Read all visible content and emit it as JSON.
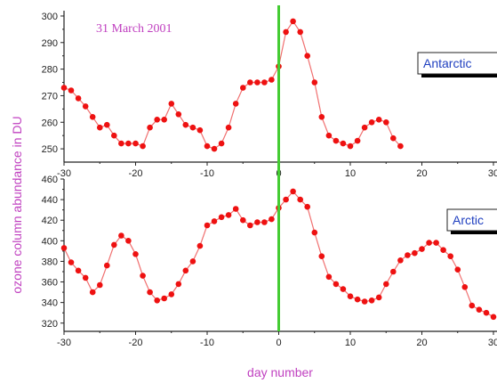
{
  "chart_data": {
    "type": "line",
    "ylabel": "ozone column abundance in DU",
    "xlabel": "day number",
    "annotation": "31 March 2001",
    "x_ticks": [
      "-30",
      "-20",
      "-10",
      "0",
      "10",
      "20",
      "30"
    ],
    "xlim": [
      -30,
      30
    ],
    "vertical_line_x": 0,
    "colors": {
      "series": "#ee1111",
      "line": "#f07070",
      "vline": "#44cc33",
      "legend_text": "#2040c0",
      "labels": "#c040c0"
    },
    "panels": [
      {
        "name": "Antarctic",
        "legend": "Antarctic",
        "ylim": [
          245,
          302
        ],
        "y_ticks": [
          "250",
          "260",
          "270",
          "280",
          "290",
          "300"
        ],
        "x": [
          -30,
          -29,
          -28,
          -27,
          -26,
          -25,
          -24,
          -23,
          -22,
          -21,
          -20,
          -19,
          -18,
          -17,
          -16,
          -15,
          -14,
          -13,
          -12,
          -11,
          -10,
          -9,
          -8,
          -7,
          -6,
          -5,
          -4,
          -3,
          -2,
          -1,
          0,
          1,
          2,
          3,
          4,
          5,
          6,
          7,
          8,
          9,
          10,
          11,
          12,
          13,
          14,
          15,
          16,
          17
        ],
        "y": [
          273,
          272,
          269,
          266,
          262,
          258,
          259,
          255,
          252,
          252,
          252,
          251,
          258,
          261,
          261,
          267,
          263,
          259,
          258,
          257,
          251,
          250,
          252,
          258,
          267,
          273,
          275,
          275,
          275,
          276,
          281,
          294,
          298,
          294,
          285,
          275,
          262,
          255,
          253,
          252,
          251,
          253,
          258,
          260,
          261,
          260,
          254,
          251
        ]
      },
      {
        "name": "Arctic",
        "legend": "Arctic",
        "ylim": [
          312,
          460
        ],
        "y_ticks": [
          "320",
          "340",
          "360",
          "380",
          "400",
          "420",
          "440",
          "460"
        ],
        "x": [
          -30,
          -29,
          -28,
          -27,
          -26,
          -25,
          -24,
          -23,
          -22,
          -21,
          -20,
          -19,
          -18,
          -17,
          -16,
          -15,
          -14,
          -13,
          -12,
          -11,
          -10,
          -9,
          -8,
          -7,
          -6,
          -5,
          -4,
          -3,
          -2,
          -1,
          0,
          1,
          2,
          3,
          4,
          5,
          6,
          7,
          8,
          9,
          10,
          11,
          12,
          13,
          14,
          15,
          16,
          17,
          18,
          19,
          20,
          21,
          22,
          23,
          24,
          25,
          26,
          27,
          28,
          29,
          30
        ],
        "y": [
          393,
          379,
          371,
          364,
          350,
          357,
          376,
          396,
          405,
          400,
          387,
          366,
          350,
          342,
          344,
          348,
          358,
          371,
          380,
          395,
          415,
          419,
          423,
          425,
          431,
          420,
          415,
          418,
          418,
          421,
          432,
          440,
          448,
          440,
          433,
          408,
          385,
          365,
          358,
          353,
          346,
          343,
          341,
          342,
          345,
          358,
          370,
          381,
          386,
          388,
          392,
          398,
          398,
          391,
          385,
          372,
          355,
          337,
          333,
          330,
          326
        ]
      }
    ]
  }
}
